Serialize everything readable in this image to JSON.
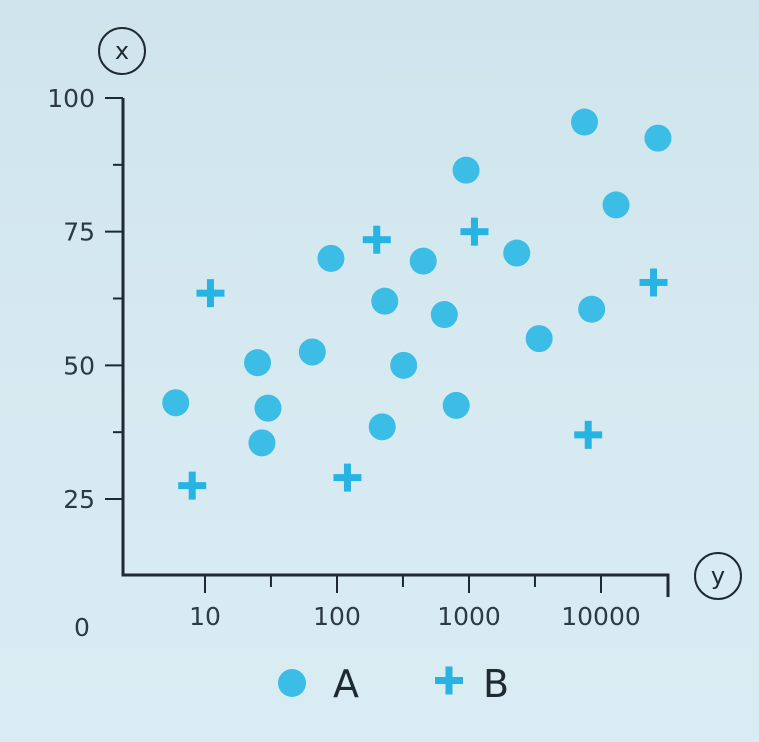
{
  "chart_data": {
    "type": "scatter",
    "title": "",
    "xlabel": "y",
    "ylabel": "x",
    "x_scale": "log",
    "xlim": [
      1,
      50000
    ],
    "ylim": [
      0,
      100
    ],
    "x_ticks": [
      10,
      100,
      1000,
      10000
    ],
    "x_tick_labels": [
      "10",
      "100",
      "1000",
      "10000"
    ],
    "y_ticks": [
      25,
      50,
      75,
      100
    ],
    "y_tick_labels": [
      "25",
      "50",
      "75",
      "100"
    ],
    "origin_label": "0",
    "grid": false,
    "legend_position": "bottom",
    "series": [
      {
        "name": "A",
        "marker": "circle",
        "color": "#3bbde5",
        "points": [
          {
            "x": 6,
            "y": 43
          },
          {
            "x": 25,
            "y": 50.5
          },
          {
            "x": 27,
            "y": 35.5
          },
          {
            "x": 30,
            "y": 42
          },
          {
            "x": 65,
            "y": 52.5
          },
          {
            "x": 90,
            "y": 70
          },
          {
            "x": 220,
            "y": 38.5
          },
          {
            "x": 230,
            "y": 62
          },
          {
            "x": 320,
            "y": 50
          },
          {
            "x": 450,
            "y": 69.5
          },
          {
            "x": 650,
            "y": 59.5
          },
          {
            "x": 800,
            "y": 42.5
          },
          {
            "x": 950,
            "y": 86.5
          },
          {
            "x": 2300,
            "y": 71
          },
          {
            "x": 3400,
            "y": 55
          },
          {
            "x": 7500,
            "y": 95.5
          },
          {
            "x": 8500,
            "y": 60.5
          },
          {
            "x": 13000,
            "y": 80
          },
          {
            "x": 27000,
            "y": 92.5
          }
        ]
      },
      {
        "name": "B",
        "marker": "plus",
        "color": "#27b4e3",
        "points": [
          {
            "x": 8,
            "y": 27.5
          },
          {
            "x": 11,
            "y": 63.5
          },
          {
            "x": 120,
            "y": 29
          },
          {
            "x": 200,
            "y": 73.5
          },
          {
            "x": 1100,
            "y": 75
          },
          {
            "x": 8000,
            "y": 37
          },
          {
            "x": 25000,
            "y": 65.5
          }
        ]
      }
    ]
  }
}
